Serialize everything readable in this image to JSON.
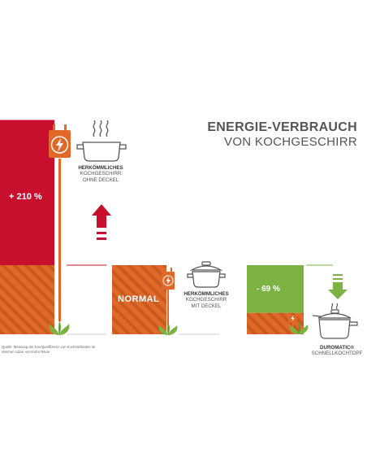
{
  "title": {
    "line1": "ENERGIE-VERBRAUCH",
    "line2": "VON KOCHGESCHIRR"
  },
  "chart_data": {
    "type": "bar",
    "categories": [
      "Herkömmliches Kochgeschirr ohne Deckel",
      "Herkömmliches Kochgeschirr mit Deckel",
      "DUROMATIC® Schnellkochtopf"
    ],
    "values": [
      310,
      100,
      31
    ],
    "value_labels": [
      "+ 210 %",
      "NORMAL",
      "- 69 %"
    ],
    "baseline_label": "NORMAL",
    "ylim": [
      0,
      330
    ]
  },
  "labels": {
    "bar1": {
      "bold": "HERKÖMMLICHES",
      "line2": "KOCHGESCHIRR",
      "line3": "OHNE DECKEL"
    },
    "bar2": {
      "bold": "HERKÖMMLICHES",
      "line2": "KOCHGESCHIRR",
      "line3": "MIT DECKEL"
    },
    "bar3": {
      "bold": "DUROMATIC®",
      "line2": "SCHNELLKOCHTOPF"
    }
  },
  "source": "Quelle: Messung der Energieeffizienz von Kochmethoden im internen Labor von Kuhn Rikon",
  "colors": {
    "red": "#c8102e",
    "orange": "#e0692a",
    "orange_stripe": "#c85a1e",
    "green": "#7cb342",
    "gray_text": "#555555"
  },
  "icons": [
    "plug-icon",
    "lightning-icon",
    "pot-icon",
    "steam-icon",
    "leaf-icon",
    "arrow-up-icon",
    "arrow-down-icon",
    "pressure-cooker-icon"
  ]
}
